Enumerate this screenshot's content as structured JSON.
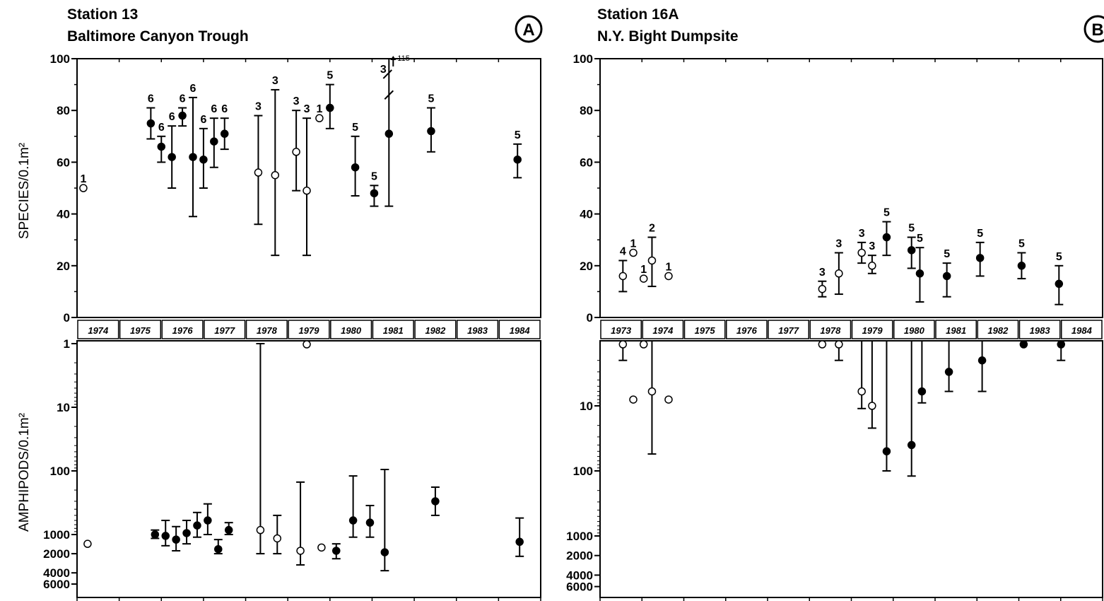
{
  "chart_data": [
    {
      "panel": "A",
      "title": "Station 13",
      "subtitle": "Baltimore Canyon Trough",
      "top": {
        "type": "scatter",
        "ylabel": "SPECIES/0.1m²",
        "ylim": [
          0,
          100
        ],
        "yticks": [
          0,
          20,
          40,
          60,
          80,
          100
        ],
        "points": [
          {
            "x": 1974.15,
            "y": 50,
            "lo": null,
            "hi": null,
            "open": true,
            "n": "1"
          },
          {
            "x": 1975.75,
            "y": 75,
            "lo": 69,
            "hi": 81,
            "open": false,
            "n": "6"
          },
          {
            "x": 1976.0,
            "y": 66,
            "lo": 60,
            "hi": 70,
            "open": false,
            "n": "6"
          },
          {
            "x": 1976.25,
            "y": 62,
            "lo": 50,
            "hi": 74,
            "open": false,
            "n": "6"
          },
          {
            "x": 1976.5,
            "y": 78,
            "lo": 74,
            "hi": 81,
            "open": false,
            "n": "6"
          },
          {
            "x": 1976.75,
            "y": 62,
            "lo": 39,
            "hi": 85,
            "open": false,
            "n": "6"
          },
          {
            "x": 1977.0,
            "y": 61,
            "lo": 50,
            "hi": 73,
            "open": false,
            "n": "6"
          },
          {
            "x": 1977.25,
            "y": 68,
            "lo": 58,
            "hi": 77,
            "open": false,
            "n": "6"
          },
          {
            "x": 1977.5,
            "y": 71,
            "lo": 65,
            "hi": 77,
            "open": false,
            "n": "6"
          },
          {
            "x": 1978.3,
            "y": 56,
            "lo": 36,
            "hi": 78,
            "open": true,
            "n": "3"
          },
          {
            "x": 1978.7,
            "y": 55,
            "lo": 24,
            "hi": 88,
            "open": true,
            "n": "3"
          },
          {
            "x": 1979.2,
            "y": 64,
            "lo": 49,
            "hi": 80,
            "open": true,
            "n": "3"
          },
          {
            "x": 1979.45,
            "y": 49,
            "lo": 24,
            "hi": 77,
            "open": true,
            "n": "3"
          },
          {
            "x": 1979.75,
            "y": 77,
            "lo": null,
            "hi": null,
            "open": true,
            "n": "1"
          },
          {
            "x": 1980.0,
            "y": 81,
            "lo": 73,
            "hi": 90,
            "open": false,
            "n": "5"
          },
          {
            "x": 1980.6,
            "y": 58,
            "lo": 47,
            "hi": 70,
            "open": false,
            "n": "5"
          },
          {
            "x": 1981.05,
            "y": 48,
            "lo": 43,
            "hi": 51,
            "open": false,
            "n": "5"
          },
          {
            "x": 1981.4,
            "y": 71,
            "lo": 43,
            "hi": 115,
            "open": false,
            "n": "3"
          },
          {
            "x": 1982.4,
            "y": 72,
            "lo": 64,
            "hi": 81,
            "open": false,
            "n": "5"
          },
          {
            "x": 1984.45,
            "y": 61,
            "lo": 54,
            "hi": 67,
            "open": false,
            "n": "5"
          }
        ],
        "annotations": [
          "115"
        ]
      },
      "years": [
        "1974",
        "1975",
        "1976",
        "1977",
        "1978",
        "1979",
        "1980",
        "1981",
        "1982",
        "1983",
        "1984"
      ],
      "bottom": {
        "type": "scatter",
        "ylabel": "AMPHIPODS/0.1m²",
        "yscale": "log",
        "inverted": true,
        "yticks": [
          "1",
          "10",
          "100",
          "1000",
          "2000",
          "4000",
          "6000"
        ],
        "points": [
          {
            "x": 1974.25,
            "y": 1400,
            "lo": null,
            "hi": null,
            "open": true
          },
          {
            "x": 1975.85,
            "y": 1000,
            "lo": 850,
            "hi": 1150,
            "open": false
          },
          {
            "x": 1976.1,
            "y": 1050,
            "lo": 600,
            "hi": 1500,
            "open": false
          },
          {
            "x": 1976.35,
            "y": 1200,
            "lo": 750,
            "hi": 1800,
            "open": false
          },
          {
            "x": 1976.6,
            "y": 950,
            "lo": 600,
            "hi": 1400,
            "open": false
          },
          {
            "x": 1976.85,
            "y": 720,
            "lo": 450,
            "hi": 1100,
            "open": false
          },
          {
            "x": 1977.1,
            "y": 600,
            "lo": 330,
            "hi": 1000,
            "open": false
          },
          {
            "x": 1977.35,
            "y": 1700,
            "lo": 1200,
            "hi": 2000,
            "open": false
          },
          {
            "x": 1977.6,
            "y": 850,
            "lo": 650,
            "hi": 1000,
            "open": false
          },
          {
            "x": 1978.35,
            "y": 850,
            "lo": 1,
            "hi": 2000,
            "open": true
          },
          {
            "x": 1978.75,
            "y": 1150,
            "lo": 500,
            "hi": 2000,
            "open": true
          },
          {
            "x": 1979.3,
            "y": 1800,
            "lo": 150,
            "hi": 3000,
            "open": true
          },
          {
            "x": 1979.45,
            "y": 1,
            "lo": null,
            "hi": null,
            "open": true
          },
          {
            "x": 1979.8,
            "y": 1600,
            "lo": null,
            "hi": null,
            "open": true
          },
          {
            "x": 1980.15,
            "y": 1800,
            "lo": 1400,
            "hi": 2400,
            "open": false
          },
          {
            "x": 1980.55,
            "y": 600,
            "lo": 120,
            "hi": 1100,
            "open": false
          },
          {
            "x": 1980.95,
            "y": 650,
            "lo": 350,
            "hi": 1100,
            "open": false
          },
          {
            "x": 1981.3,
            "y": 1900,
            "lo": 95,
            "hi": 3700,
            "open": false
          },
          {
            "x": 1982.5,
            "y": 300,
            "lo": 180,
            "hi": 500,
            "open": false
          },
          {
            "x": 1984.5,
            "y": 1300,
            "lo": 550,
            "hi": 2200,
            "open": false
          }
        ]
      }
    },
    {
      "panel": "B",
      "title": "Station 16A",
      "subtitle": "N.Y. Bight Dumpsite",
      "top": {
        "type": "scatter",
        "ylabel": "",
        "ylim": [
          0,
          100
        ],
        "yticks": [
          0,
          20,
          40,
          60,
          80,
          100
        ],
        "points": [
          {
            "x": 1973.55,
            "y": 16,
            "lo": 10,
            "hi": 22,
            "open": true,
            "n": "4"
          },
          {
            "x": 1973.8,
            "y": 25,
            "lo": null,
            "hi": null,
            "open": true,
            "n": "1"
          },
          {
            "x": 1974.05,
            "y": 15,
            "lo": null,
            "hi": null,
            "open": true,
            "n": "1"
          },
          {
            "x": 1974.25,
            "y": 22,
            "lo": 12,
            "hi": 31,
            "open": true,
            "n": "2"
          },
          {
            "x": 1974.65,
            "y": 16,
            "lo": null,
            "hi": null,
            "open": true,
            "n": "1"
          },
          {
            "x": 1978.35,
            "y": 11,
            "lo": 8,
            "hi": 14,
            "open": true,
            "n": "3"
          },
          {
            "x": 1978.75,
            "y": 17,
            "lo": 9,
            "hi": 25,
            "open": true,
            "n": "3"
          },
          {
            "x": 1979.3,
            "y": 25,
            "lo": 21,
            "hi": 29,
            "open": true,
            "n": "3"
          },
          {
            "x": 1979.55,
            "y": 20,
            "lo": 17,
            "hi": 24,
            "open": true,
            "n": "3"
          },
          {
            "x": 1979.9,
            "y": 31,
            "lo": 24,
            "hi": 37,
            "open": false,
            "n": "5"
          },
          {
            "x": 1980.5,
            "y": 26,
            "lo": 19,
            "hi": 31,
            "open": false,
            "n": "5"
          },
          {
            "x": 1980.7,
            "y": 17,
            "lo": 6,
            "hi": 27,
            "open": false,
            "n": "5"
          },
          {
            "x": 1981.35,
            "y": 16,
            "lo": 8,
            "hi": 21,
            "open": false,
            "n": "5"
          },
          {
            "x": 1982.15,
            "y": 23,
            "lo": 16,
            "hi": 29,
            "open": false,
            "n": "5"
          },
          {
            "x": 1983.15,
            "y": 20,
            "lo": 15,
            "hi": 25,
            "open": false,
            "n": "5"
          },
          {
            "x": 1984.05,
            "y": 13,
            "lo": 5,
            "hi": 20,
            "open": false,
            "n": "5"
          }
        ]
      },
      "years": [
        "1973",
        "1974",
        "1975",
        "1976",
        "1977",
        "1978",
        "1979",
        "1980",
        "1981",
        "1982",
        "1983",
        "1984"
      ],
      "bottom": {
        "type": "scatter",
        "ylabel": "",
        "yscale": "log",
        "inverted": true,
        "yticks": [
          "10",
          "100",
          "1000",
          "2000",
          "4000",
          "6000"
        ],
        "points": [
          {
            "x": 1973.55,
            "y": 1,
            "lo": 1,
            "hi": 2,
            "open": true
          },
          {
            "x": 1973.8,
            "y": 8,
            "lo": null,
            "hi": null,
            "open": true
          },
          {
            "x": 1974.05,
            "y": 1,
            "lo": null,
            "hi": null,
            "open": true
          },
          {
            "x": 1974.25,
            "y": 6,
            "lo": 1,
            "hi": 55,
            "open": true
          },
          {
            "x": 1974.65,
            "y": 8,
            "lo": null,
            "hi": null,
            "open": true
          },
          {
            "x": 1978.35,
            "y": 1,
            "lo": null,
            "hi": null,
            "open": true
          },
          {
            "x": 1978.75,
            "y": 1,
            "lo": 1,
            "hi": 2,
            "open": true
          },
          {
            "x": 1979.3,
            "y": 6,
            "lo": 1,
            "hi": 11,
            "open": true
          },
          {
            "x": 1979.55,
            "y": 10,
            "lo": 1,
            "hi": 22,
            "open": true
          },
          {
            "x": 1979.9,
            "y": 50,
            "lo": 1,
            "hi": 100,
            "open": false
          },
          {
            "x": 1980.5,
            "y": 40,
            "lo": 1,
            "hi": 120,
            "open": false
          },
          {
            "x": 1980.75,
            "y": 6,
            "lo": 1,
            "hi": 9,
            "open": false
          },
          {
            "x": 1981.4,
            "y": 3,
            "lo": 1,
            "hi": 6,
            "open": false
          },
          {
            "x": 1982.2,
            "y": 2,
            "lo": 1,
            "hi": 6,
            "open": false
          },
          {
            "x": 1983.2,
            "y": 1,
            "lo": null,
            "hi": null,
            "open": false
          },
          {
            "x": 1984.1,
            "y": 1,
            "lo": 1,
            "hi": 2,
            "open": false
          }
        ]
      }
    }
  ]
}
